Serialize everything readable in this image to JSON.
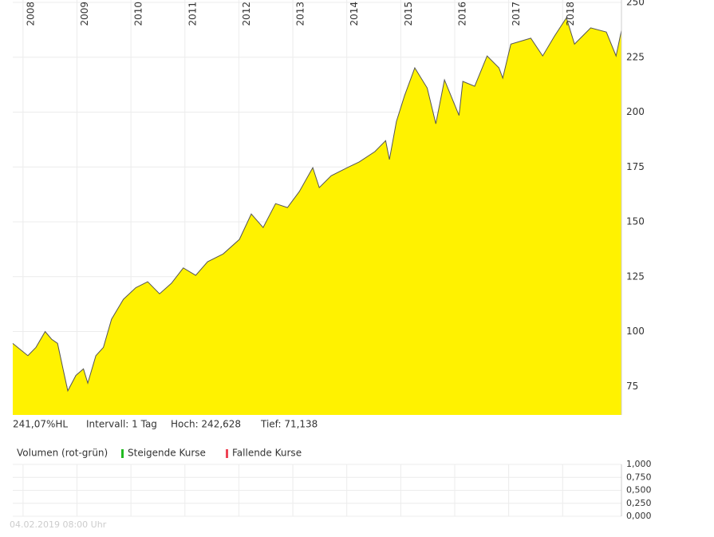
{
  "chart_data": [
    {
      "type": "area",
      "x": [
        2007.81,
        2008.09,
        2008.24,
        2008.41,
        2008.53,
        2008.64,
        2008.75,
        2008.83,
        2008.98,
        2009.12,
        2009.2,
        2009.35,
        2009.49,
        2009.64,
        2009.86,
        2010.09,
        2010.31,
        2010.53,
        2010.75,
        2010.97,
        2011.2,
        2011.42,
        2011.71,
        2012.01,
        2012.23,
        2012.45,
        2012.68,
        2012.9,
        2013.12,
        2013.37,
        2013.49,
        2013.71,
        2014.01,
        2014.23,
        2014.52,
        2014.72,
        2014.79,
        2014.92,
        2015.07,
        2015.26,
        2015.49,
        2015.65,
        2015.81,
        2016.08,
        2016.15,
        2016.37,
        2016.6,
        2016.82,
        2016.89,
        2017.04,
        2017.41,
        2017.63,
        2017.85,
        2018.07,
        2018.22,
        2018.52,
        2018.81,
        2018.99,
        2019.09
      ],
      "values": [
        94.6,
        89,
        92.8,
        100,
        96.5,
        94.6,
        82,
        73,
        80,
        83,
        76.5,
        89,
        92.8,
        105.6,
        114.7,
        120,
        122.7,
        117.2,
        122,
        129,
        125.6,
        131.8,
        135.4,
        142,
        153.6,
        147.4,
        158.3,
        156.5,
        163.8,
        174.7,
        165.6,
        171,
        174.7,
        177.3,
        182,
        187,
        178.4,
        195.8,
        207.5,
        220.2,
        211,
        194.7,
        214.7,
        198.5,
        214,
        211.8,
        225.6,
        220.2,
        215.5,
        231,
        233.7,
        225.6,
        234.7,
        243,
        231,
        238.4,
        236.5,
        225.6,
        237.3
      ],
      "color": "#fff200",
      "line_color": "#555555",
      "xlim": [
        2007.81,
        2019.09
      ],
      "ylim": [
        62,
        251.1
      ],
      "xticks": [
        2008,
        2009,
        2010,
        2011,
        2012,
        2013,
        2014,
        2015,
        2016,
        2017,
        2018
      ],
      "yticks": [
        75,
        100,
        125,
        150,
        175,
        200,
        225,
        250
      ],
      "grid": true,
      "info": [
        "241,07%HL",
        "Intervall: 1 Tag",
        "Hoch: 242,628",
        "Tief: 71,138"
      ]
    },
    {
      "type": "bar",
      "title": "Volumen (rot-grün)",
      "series": [
        {
          "name": "Steigende Kurse",
          "color": "#22bb22",
          "values": []
        },
        {
          "name": "Fallende Kurse",
          "color": "#ee4455",
          "values": []
        }
      ],
      "xlim": [
        2007.81,
        2019.09
      ],
      "ylim": [
        0,
        1
      ],
      "xticks": [
        2008,
        2009,
        2010,
        2011,
        2012,
        2013,
        2014,
        2015,
        2016,
        2017,
        2018
      ],
      "yticks": [
        {
          "value": 1,
          "label": "1,000"
        },
        {
          "value": 0.75,
          "label": "0,750"
        },
        {
          "value": 0.5,
          "label": "0,500"
        },
        {
          "value": 0.25,
          "label": "0,250"
        },
        {
          "value": 0,
          "label": "0,000"
        }
      ],
      "grid": true
    }
  ],
  "timestamp": "04.02.2019 08:00 Uhr"
}
